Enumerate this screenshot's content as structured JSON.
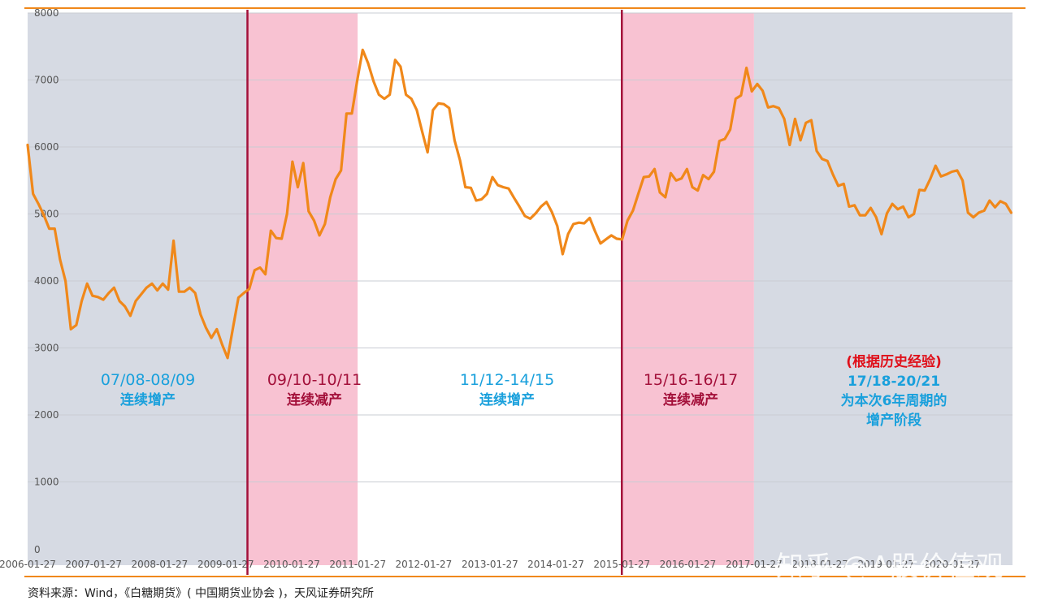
{
  "chart_data": {
    "type": "line",
    "title": "",
    "xlabel": "",
    "ylabel": "",
    "ylim": [
      0,
      8000
    ],
    "yticks": [
      0,
      1000,
      2000,
      3000,
      4000,
      5000,
      6000,
      7000,
      8000
    ],
    "xticks": [
      "2006-01-27",
      "2007-01-27",
      "2008-01-27",
      "2009-01-27",
      "2010-01-27",
      "2011-01-27",
      "2012-01-27",
      "2013-01-27",
      "2014-01-27",
      "2015-01-27",
      "2016-01-27",
      "2017-01-27",
      "2018-01-27",
      "2019-01-27",
      "2020-01-27"
    ],
    "grid": true,
    "legend": "none",
    "x_start": "2006-01-27",
    "x_step": "quarter-month",
    "series": [
      {
        "name": "",
        "color": "#f0881a",
        "values": [
          6030,
          5300,
          5150,
          4980,
          4780,
          4780,
          4320,
          4000,
          3280,
          3340,
          3700,
          3960,
          3780,
          3760,
          3720,
          3820,
          3900,
          3700,
          3620,
          3480,
          3700,
          3800,
          3900,
          3960,
          3860,
          3960,
          3870,
          4600,
          3840,
          3840,
          3900,
          3820,
          3500,
          3300,
          3150,
          3280,
          3050,
          2850,
          3300,
          3750,
          3820,
          3880,
          4160,
          4200,
          4100,
          4750,
          4640,
          4630,
          5000,
          5780,
          5400,
          5760,
          5040,
          4900,
          4680,
          4850,
          5250,
          5520,
          5650,
          6500,
          6500,
          7000,
          7450,
          7250,
          6980,
          6780,
          6720,
          6780,
          7300,
          7200,
          6780,
          6720,
          6550,
          6230,
          5920,
          6550,
          6650,
          6640,
          6580,
          6100,
          5800,
          5400,
          5390,
          5200,
          5220,
          5300,
          5550,
          5430,
          5400,
          5380,
          5240,
          5110,
          4970,
          4930,
          5010,
          5110,
          5180,
          5030,
          4820,
          4400,
          4700,
          4850,
          4870,
          4860,
          4940,
          4740,
          4560,
          4620,
          4680,
          4630,
          4620,
          4900,
          5050,
          5300,
          5550,
          5560,
          5670,
          5320,
          5250,
          5610,
          5500,
          5530,
          5670,
          5400,
          5350,
          5580,
          5520,
          5630,
          6090,
          6120,
          6260,
          6720,
          6770,
          7180,
          6830,
          6940,
          6840,
          6590,
          6610,
          6580,
          6420,
          6030,
          6420,
          6100,
          6360,
          6400,
          5940,
          5820,
          5790,
          5590,
          5420,
          5450,
          5110,
          5130,
          4980,
          4980,
          5090,
          4950,
          4700,
          5010,
          5150,
          5070,
          5110,
          4950,
          5000,
          5360,
          5350,
          5520,
          5720,
          5560,
          5590,
          5630,
          5650,
          5500,
          5020,
          4950,
          5020,
          5050,
          5200,
          5100,
          5190,
          5150,
          5020
        ],
        "markers": false
      }
    ],
    "regions": [
      {
        "from": "2006-01-27",
        "to": "2009-05-27",
        "color": "#d6dae3"
      },
      {
        "from": "2009-05-27",
        "to": "2011-01-27",
        "color": "#f8c2d2"
      },
      {
        "from": "2011-01-27",
        "to": "2015-01-27",
        "color": "#ffffff"
      },
      {
        "from": "2015-01-27",
        "to": "2017-01-27",
        "color": "#f8c2d2"
      },
      {
        "from": "2017-01-27",
        "to": "2020-12-27",
        "color": "#d6dae3"
      }
    ],
    "vlines": [
      {
        "at": "2009-05-27",
        "color": "#a3103a"
      },
      {
        "at": "2015-01-27",
        "color": "#a3103a"
      }
    ],
    "annotations": [
      {
        "lines": [
          "07/08-08/09",
          "连续增产"
        ],
        "color": "#19a0dc"
      },
      {
        "lines": [
          "09/10-10/11",
          "连续减产"
        ],
        "color": "#a3103a"
      },
      {
        "lines": [
          "11/12-14/15",
          "连续增产"
        ],
        "color": "#19a0dc"
      },
      {
        "lines": [
          "15/16-16/17",
          "连续减产"
        ],
        "color": "#a3103a"
      },
      {
        "lines": [
          "(根据历史经验)",
          "17/18-20/21",
          "为本次6年周期的",
          "增产阶段"
        ],
        "colors": [
          "#e0101a",
          "#19a0dc",
          "#19a0dc",
          "#19a0dc"
        ]
      }
    ]
  },
  "source_text": "资料来源：Wind，《白糖期货》( 中国期货业协会 )，天风证券研究所",
  "watermark_text": "知乎 @A股价值观",
  "colors": {
    "top_rule": "#f0881a",
    "bottom_rule": "#f0881a",
    "gridline": "#c9ccd3"
  }
}
